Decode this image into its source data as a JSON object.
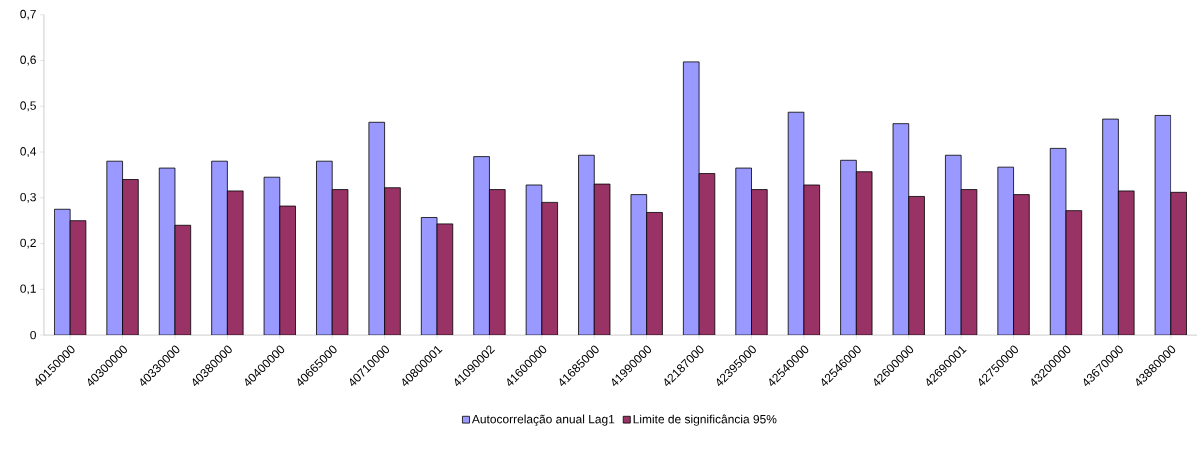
{
  "chart_data": {
    "type": "bar",
    "categories": [
      "40150000",
      "40300000",
      "40330000",
      "40380000",
      "40400000",
      "40665000",
      "40710000",
      "40800001",
      "41090002",
      "41600000",
      "41685000",
      "41990000",
      "42187000",
      "42395000",
      "42540000",
      "42546000",
      "42600000",
      "42690001",
      "42750000",
      "43200000",
      "43670000",
      "43880000"
    ],
    "series": [
      {
        "name": "Autocorrelação anual Lag1",
        "color": "#9999ff",
        "values": [
          0.275,
          0.38,
          0.365,
          0.38,
          0.345,
          0.38,
          0.465,
          0.257,
          0.39,
          0.328,
          0.393,
          0.307,
          0.597,
          0.365,
          0.487,
          0.382,
          0.462,
          0.393,
          0.367,
          0.408,
          0.472,
          0.48
        ]
      },
      {
        "name": "Limite de significância 95%",
        "color": "#993366",
        "values": [
          0.25,
          0.34,
          0.24,
          0.315,
          0.282,
          0.318,
          0.322,
          0.243,
          0.318,
          0.29,
          0.33,
          0.268,
          0.353,
          0.318,
          0.328,
          0.357,
          0.303,
          0.318,
          0.307,
          0.272,
          0.315,
          0.312
        ]
      }
    ],
    "ylim": [
      0,
      0.7
    ],
    "yticks": [
      {
        "value": 0,
        "label": "0"
      },
      {
        "value": 0.1,
        "label": "0,1"
      },
      {
        "value": 0.2,
        "label": "0,2"
      },
      {
        "value": 0.3,
        "label": "0,3"
      },
      {
        "value": 0.4,
        "label": "0,4"
      },
      {
        "value": 0.5,
        "label": "0,5"
      },
      {
        "value": 0.6,
        "label": "0,6"
      },
      {
        "value": 0.7,
        "label": "0,7"
      }
    ],
    "grid": false,
    "legend": "bottom"
  }
}
